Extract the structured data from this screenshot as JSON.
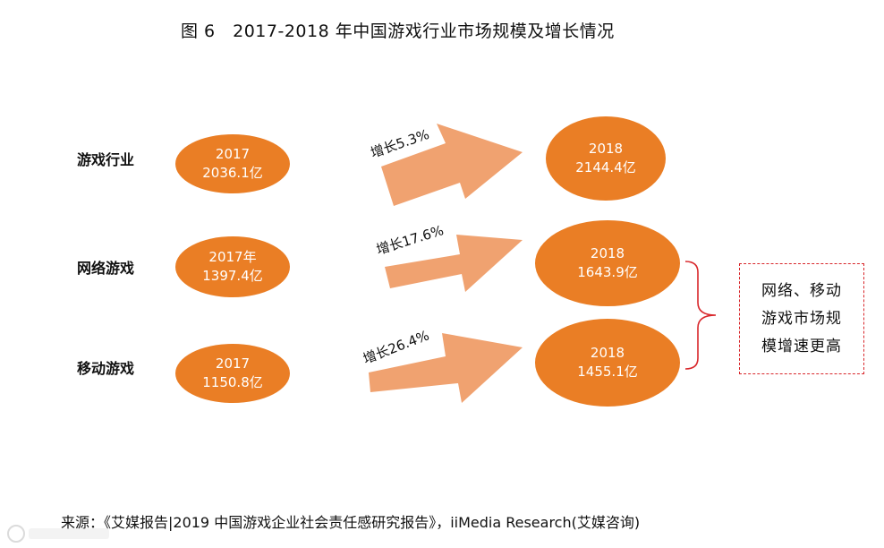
{
  "title": "图 6　2017-2018 年中国游戏行业市场规模及增长情况",
  "rows": [
    {
      "label": "游戏行业",
      "from": {
        "line1": "2017",
        "line2": "2036.1亿"
      },
      "growth": "增长5.3%",
      "to": {
        "line1": "2018",
        "line2": "2144.4亿"
      }
    },
    {
      "label": "网络游戏",
      "from": {
        "line1": "2017年",
        "line2": "1397.4亿"
      },
      "growth": "增长17.6%",
      "to": {
        "line1": "2018",
        "line2": "1643.9亿"
      }
    },
    {
      "label": "移动游戏",
      "from": {
        "line1": "2017",
        "line2": "1150.8亿"
      },
      "growth": "增长26.4%",
      "to": {
        "line1": "2018",
        "line2": "1455.1亿"
      }
    }
  ],
  "note": {
    "line1": "网络、移动",
    "line2": "游戏市场规",
    "line3": "模增速更高"
  },
  "source": "来源：《艾媒报告|2019 中国游戏企业社会责任感研究报告》，iiMedia Research(艾媒咨询)",
  "colors": {
    "ellipse": "#ea7e25",
    "arrow": "#f0a270",
    "note_border": "#d8262a",
    "bracket": "#d8262a"
  }
}
